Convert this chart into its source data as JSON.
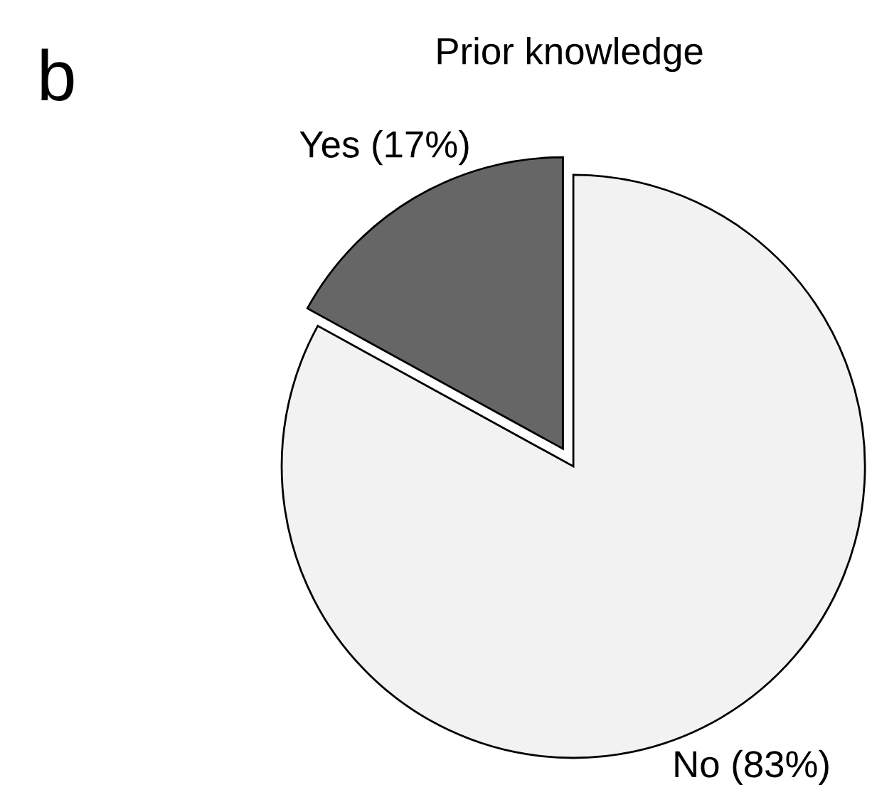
{
  "chart_data": {
    "type": "pie",
    "title": "Prior knowledge",
    "categories": [
      "Yes (17%)",
      "No (83%)"
    ],
    "values": [
      17,
      83
    ],
    "colors": [
      "#666666",
      "#f2f2f2"
    ],
    "annotations": [
      "b"
    ]
  }
}
